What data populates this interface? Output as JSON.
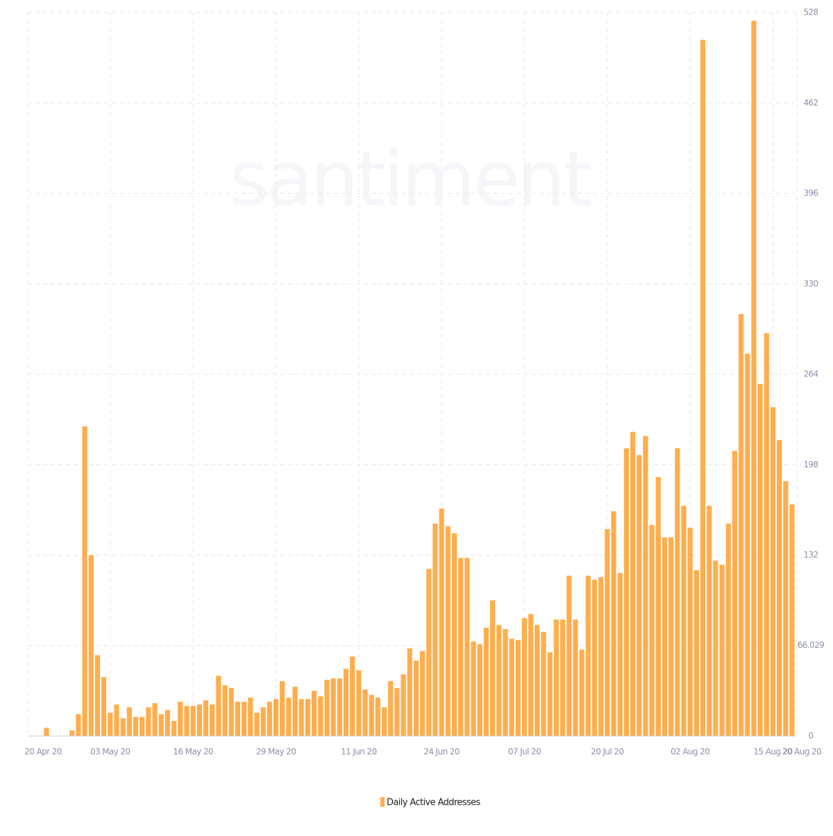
{
  "chart_data": {
    "type": "bar",
    "watermark": "santiment",
    "series": [
      {
        "name": "Daily Active Addresses",
        "color": "#ffad4d",
        "values": [
          6,
          0,
          0,
          0,
          4,
          16,
          226,
          132,
          59,
          43,
          17,
          23,
          13,
          21,
          14,
          14,
          21,
          24,
          16,
          19,
          11,
          25,
          22,
          22,
          23,
          26,
          23,
          44,
          37,
          35,
          25,
          25,
          28,
          17,
          21,
          25,
          27,
          40,
          28,
          36,
          27,
          27,
          33,
          29,
          41,
          42,
          42,
          49,
          58,
          48,
          34,
          30,
          28,
          21,
          40,
          35,
          45,
          64,
          55,
          62,
          122,
          155,
          166,
          153,
          148,
          130,
          130,
          69,
          67,
          79,
          99,
          81,
          78,
          71,
          70,
          86,
          89,
          81,
          76,
          61,
          85,
          85,
          117,
          85,
          63,
          117,
          114,
          116,
          151,
          164,
          119,
          210,
          222,
          205,
          219,
          154,
          189,
          145,
          145,
          210,
          168,
          152,
          121,
          508,
          168,
          128,
          125,
          155,
          208,
          308,
          279,
          522,
          257,
          294,
          240,
          216,
          186,
          169
        ]
      }
    ],
    "categories": [
      null,
      null,
      null,
      null,
      null,
      null,
      null,
      null,
      null,
      null,
      "03 May 20",
      null,
      null,
      null,
      null,
      null,
      null,
      null,
      null,
      null,
      null,
      null,
      null,
      "16 May 20",
      null,
      null,
      null,
      null,
      null,
      null,
      null,
      null,
      null,
      null,
      null,
      null,
      "29 May 20",
      null,
      null,
      null,
      null,
      null,
      null,
      null,
      null,
      null,
      null,
      null,
      null,
      "11 Jun 20",
      null,
      null,
      null,
      null,
      null,
      null,
      null,
      null,
      null,
      null,
      null,
      null,
      "24 Jun 20",
      null,
      null,
      null,
      null,
      null,
      null,
      null,
      null,
      null,
      null,
      null,
      null,
      "07 Jul 20",
      null,
      null,
      null,
      null,
      null,
      null,
      null,
      null,
      null,
      null,
      null,
      null,
      "20 Jul 20",
      null,
      null,
      null,
      null,
      null,
      null,
      null,
      null,
      null,
      null,
      null,
      null,
      "02 Aug 20",
      null,
      null,
      null,
      null,
      null,
      null,
      null,
      null,
      null,
      null,
      null,
      null,
      "15 Aug 20",
      null,
      null,
      null
    ],
    "x_edge_labels": [
      "20 Apr 20",
      "20 Aug 20"
    ],
    "ylim": [
      0,
      528
    ],
    "yticks": [
      0,
      66.029,
      132,
      198,
      264,
      330,
      396,
      462,
      528
    ],
    "grid": true,
    "legend": "bottom"
  }
}
